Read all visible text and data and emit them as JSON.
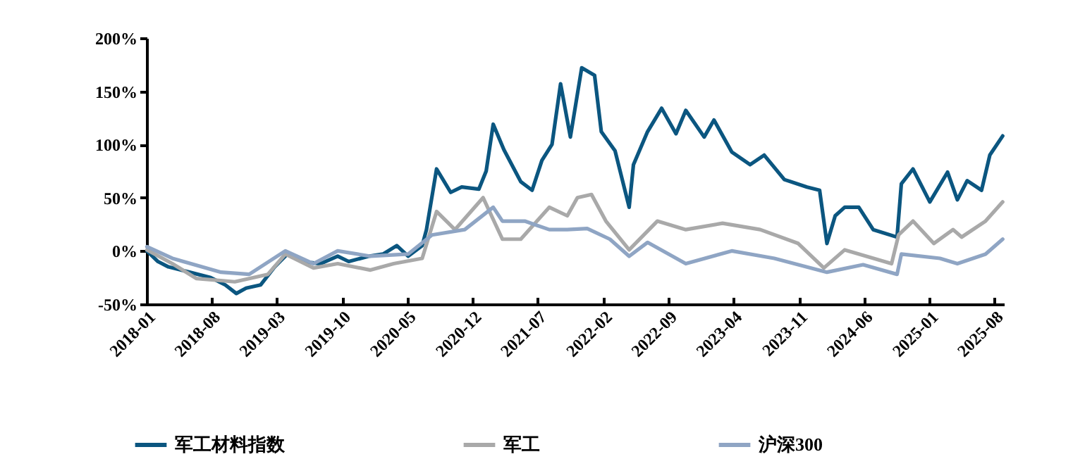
{
  "chart_data": {
    "type": "line",
    "legend": "bottom",
    "grid": false,
    "line_style": "solid",
    "marker": "none",
    "xlim": [
      "2018-01-01",
      "2025-09-01"
    ],
    "xticks": [
      "2018-01",
      "2018-08",
      "2019-03",
      "2019-10",
      "2020-05",
      "2020-12",
      "2021-07",
      "2022-02",
      "2022-09",
      "2023-04",
      "2023-11",
      "2024-06",
      "2025-01",
      "2025-08"
    ],
    "ylim": [
      -50,
      200
    ],
    "yticks": [
      {
        "value": -50,
        "label": "-50%"
      },
      {
        "value": 0,
        "label": "0%"
      },
      {
        "value": 50,
        "label": "50%"
      },
      {
        "value": 100,
        "label": "100%"
      },
      {
        "value": 150,
        "label": "150%"
      },
      {
        "value": 200,
        "label": "200%"
      }
    ],
    "series": [
      {
        "name": "军工材料指数",
        "color": "#0b5680",
        "x": [
          "2018-01-02",
          "2018-02-07",
          "2018-03-13",
          "2018-05-21",
          "2018-07-29",
          "2018-09-15",
          "2018-10-21",
          "2018-11-22",
          "2019-01-08",
          "2019-02-23",
          "2019-04-09",
          "2019-05-24",
          "2019-07-23",
          "2019-09-17",
          "2019-10-23",
          "2019-12-27",
          "2020-02-12",
          "2020-03-28",
          "2020-05-04",
          "2020-06-19",
          "2020-07-03",
          "2020-08-05",
          "2020-09-20",
          "2020-10-26",
          "2020-12-21",
          "2021-01-14",
          "2021-02-06",
          "2021-03-13",
          "2021-05-07",
          "2021-06-13",
          "2021-07-15",
          "2021-08-17",
          "2021-09-14",
          "2021-10-16",
          "2021-11-22",
          "2022-01-03",
          "2022-01-25",
          "2022-03-11",
          "2022-04-26",
          "2022-05-10",
          "2022-06-25",
          "2022-08-10",
          "2022-09-26",
          "2022-10-28",
          "2022-12-27",
          "2023-01-28",
          "2023-03-27",
          "2023-05-26",
          "2023-07-11",
          "2023-09-15",
          "2023-11-28",
          "2024-01-08",
          "2024-02-01",
          "2024-02-28",
          "2024-03-30",
          "2024-05-15",
          "2024-07-01",
          "2024-09-17",
          "2024-10-01",
          "2024-11-08",
          "2025-01-02",
          "2025-03-01",
          "2025-04-02",
          "2025-05-04",
          "2025-06-20",
          "2025-07-17",
          "2025-08-28"
        ],
        "values": [
          0,
          -10,
          -15,
          -20,
          -25,
          -32,
          -40,
          -35,
          -32,
          -15,
          -2,
          -10,
          -12,
          -5,
          -10,
          -5,
          -3,
          5,
          -5,
          5,
          20,
          77,
          55,
          60,
          58,
          75,
          119,
          95,
          65,
          57,
          85,
          100,
          157,
          107,
          172,
          165,
          112,
          94,
          41,
          81,
          112,
          134,
          110,
          132,
          107,
          123,
          93,
          81,
          90,
          67,
          60,
          57,
          7,
          33,
          41,
          41,
          20,
          13,
          63,
          77,
          46,
          74,
          48,
          66,
          57,
          90,
          108
        ]
      },
      {
        "name": "军工",
        "color": "#a9a9a9",
        "x": [
          "2018-01-02",
          "2018-03-26",
          "2018-06-13",
          "2018-10-16",
          "2019-02-01",
          "2019-03-30",
          "2019-06-30",
          "2019-09-17",
          "2020-01-02",
          "2020-03-18",
          "2020-06-19",
          "2020-08-05",
          "2020-10-04",
          "2021-01-04",
          "2021-03-08",
          "2021-05-07",
          "2021-08-08",
          "2021-10-06",
          "2021-11-08",
          "2021-12-24",
          "2022-02-09",
          "2022-04-26",
          "2022-07-27",
          "2022-10-28",
          "2023-02-25",
          "2023-06-28",
          "2023-10-30",
          "2024-01-22",
          "2024-03-30",
          "2024-08-30",
          "2024-09-22",
          "2024-11-08",
          "2025-01-15",
          "2025-03-19",
          "2025-04-16",
          "2025-07-03",
          "2025-08-28"
        ],
        "values": [
          1,
          -12,
          -26,
          -29,
          -22,
          -3,
          -16,
          -12,
          -18,
          -12,
          -7,
          37,
          20,
          50,
          11,
          11,
          41,
          33,
          50,
          53,
          28,
          1,
          28,
          20,
          26,
          20,
          7,
          -16,
          1,
          -12,
          15,
          28,
          7,
          20,
          13,
          28,
          46
        ]
      },
      {
        "name": "沪深300",
        "color": "#8fa5c4",
        "x": [
          "2018-01-02",
          "2018-03-26",
          "2018-09-01",
          "2018-12-02",
          "2019-03-30",
          "2019-06-30",
          "2019-09-17",
          "2020-01-02",
          "2020-05-04",
          "2020-07-21",
          "2020-11-05",
          "2021-02-06",
          "2021-03-08",
          "2021-05-20",
          "2021-08-08",
          "2021-10-06",
          "2021-12-10",
          "2022-02-22",
          "2022-04-26",
          "2022-06-25",
          "2022-10-28",
          "2023-03-27",
          "2023-08-13",
          "2024-02-01",
          "2024-05-29",
          "2024-09-17",
          "2024-10-01",
          "2025-02-04",
          "2025-04-02",
          "2025-07-03",
          "2025-08-28"
        ],
        "values": [
          4,
          -7,
          -20,
          -22,
          0,
          -12,
          0,
          -5,
          -3,
          15,
          20,
          41,
          28,
          28,
          20,
          20,
          21,
          11,
          -5,
          8,
          -12,
          0,
          -7,
          -20,
          -13,
          -22,
          -3,
          -7,
          -12,
          -3,
          11
        ]
      }
    ]
  }
}
